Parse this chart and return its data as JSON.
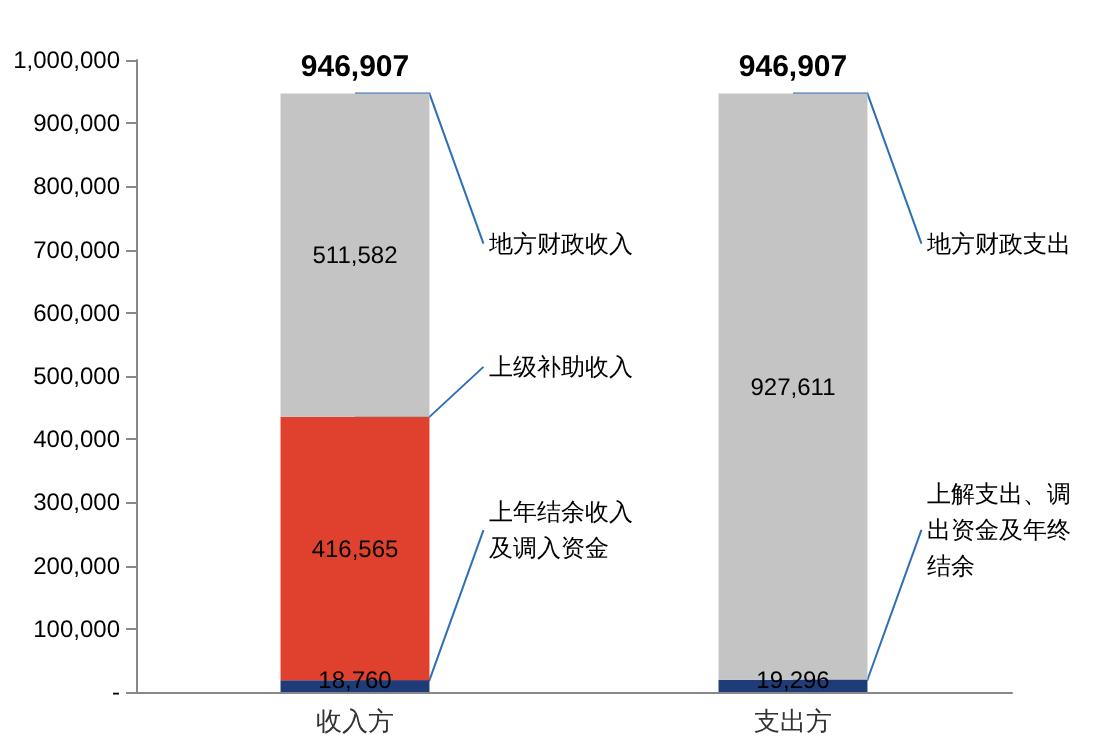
{
  "chart_data": {
    "type": "bar",
    "stacked": true,
    "categories": [
      "收入方",
      "支出方"
    ],
    "series": [
      {
        "color": "#1f3c78",
        "values": [
          18760,
          19296
        ],
        "value_labels": [
          "18,760",
          "19,296"
        ]
      },
      {
        "color": "#e0402e",
        "values": [
          416565,
          null
        ],
        "value_labels": [
          "416,565",
          null
        ]
      },
      {
        "color": "#c4c4c4",
        "values": [
          511582,
          927611
        ],
        "value_labels": [
          "511,582",
          "927,611"
        ]
      }
    ],
    "totals": [
      "946,907",
      "946,907"
    ],
    "ylim": [
      0,
      1000000
    ],
    "yticks": [
      {
        "value": 0,
        "label": "-"
      },
      {
        "value": 100000,
        "label": "100,000"
      },
      {
        "value": 200000,
        "label": "200,000"
      },
      {
        "value": 300000,
        "label": "300,000"
      },
      {
        "value": 400000,
        "label": "400,000"
      },
      {
        "value": 500000,
        "label": "500,000"
      },
      {
        "value": 600000,
        "label": "600,000"
      },
      {
        "value": 700000,
        "label": "700,000"
      },
      {
        "value": 800000,
        "label": "800,000"
      },
      {
        "value": 900000,
        "label": "900,000"
      },
      {
        "value": 1000000,
        "label": "1,000,000"
      }
    ],
    "grid": false,
    "annotations": [
      {
        "text": "地方财政收入",
        "x": "收入方",
        "y": 946907
      },
      {
        "text": "上级补助收入",
        "x": "收入方",
        "y": 435325
      },
      {
        "text": "上年结余收入及调入资金",
        "x": "收入方",
        "y": 18760
      },
      {
        "text": "地方财政支出",
        "x": "支出方",
        "y": 946907
      },
      {
        "text": "上解支出、调出资金及年终结余",
        "x": "支出方",
        "y": 19296
      }
    ]
  }
}
